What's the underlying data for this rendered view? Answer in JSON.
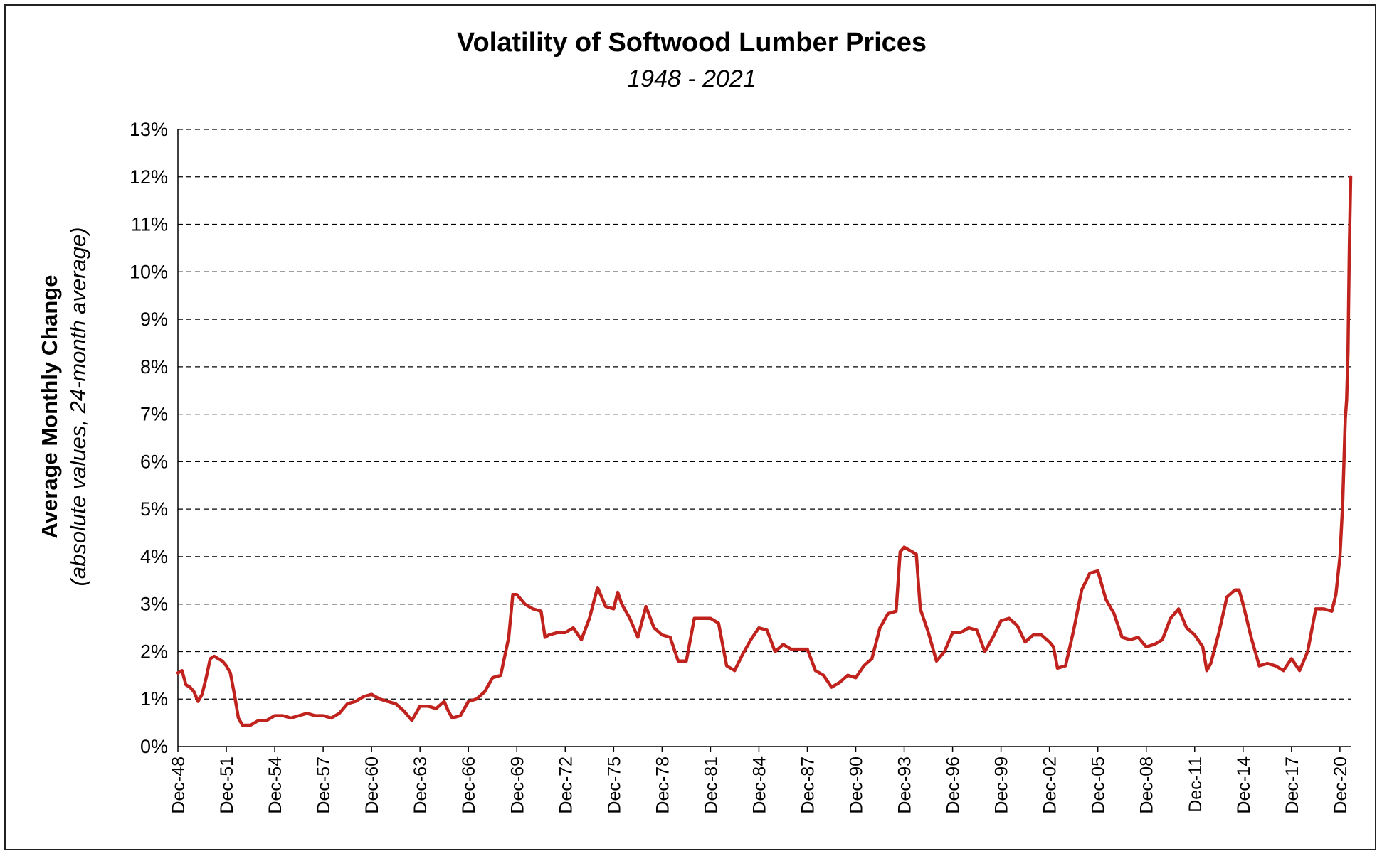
{
  "chart_data": {
    "type": "line",
    "title": "Volatility of Softwood Lumber Prices",
    "subtitle": "1948 - 2021",
    "ylabel": "Average Monthly Change",
    "ylabel_sub": "(absolute values, 24-month average)",
    "xlabel": "",
    "ylim": [
      0,
      13
    ],
    "yticks": [
      {
        "value": 0,
        "label": "0%"
      },
      {
        "value": 1,
        "label": "1%"
      },
      {
        "value": 2,
        "label": "2%"
      },
      {
        "value": 3,
        "label": "3%"
      },
      {
        "value": 4,
        "label": "4%"
      },
      {
        "value": 5,
        "label": "5%"
      },
      {
        "value": 6,
        "label": "6%"
      },
      {
        "value": 7,
        "label": "7%"
      },
      {
        "value": 8,
        "label": "8%"
      },
      {
        "value": 9,
        "label": "9%"
      },
      {
        "value": 10,
        "label": "10%"
      },
      {
        "value": 11,
        "label": "11%"
      },
      {
        "value": 12,
        "label": "12%"
      },
      {
        "value": 13,
        "label": "13%"
      }
    ],
    "xlim": [
      "Dec-48",
      "Aug-21"
    ],
    "xticks": [
      {
        "value": "Dec-48",
        "label": "Dec-48"
      },
      {
        "value": "Dec-51",
        "label": "Dec-51"
      },
      {
        "value": "Dec-54",
        "label": "Dec-54"
      },
      {
        "value": "Dec-57",
        "label": "Dec-57"
      },
      {
        "value": "Dec-60",
        "label": "Dec-60"
      },
      {
        "value": "Dec-63",
        "label": "Dec-63"
      },
      {
        "value": "Dec-66",
        "label": "Dec-66"
      },
      {
        "value": "Dec-69",
        "label": "Dec-69"
      },
      {
        "value": "Dec-72",
        "label": "Dec-72"
      },
      {
        "value": "Dec-75",
        "label": "Dec-75"
      },
      {
        "value": "Dec-78",
        "label": "Dec-78"
      },
      {
        "value": "Dec-81",
        "label": "Dec-81"
      },
      {
        "value": "Dec-84",
        "label": "Dec-84"
      },
      {
        "value": "Dec-87",
        "label": "Dec-87"
      },
      {
        "value": "Dec-90",
        "label": "Dec-90"
      },
      {
        "value": "Dec-93",
        "label": "Dec-93"
      },
      {
        "value": "Dec-96",
        "label": "Dec-96"
      },
      {
        "value": "Dec-99",
        "label": "Dec-99"
      },
      {
        "value": "Dec-02",
        "label": "Dec-02"
      },
      {
        "value": "Dec-05",
        "label": "Dec-05"
      },
      {
        "value": "Dec-08",
        "label": "Dec-08"
      },
      {
        "value": "Dec-11",
        "label": "Dec-11"
      },
      {
        "value": "Dec-14",
        "label": "Dec-14"
      },
      {
        "value": "Dec-17",
        "label": "Dec-17"
      },
      {
        "value": "Dec-20",
        "label": "Dec-20"
      }
    ],
    "grid": {
      "horizontal": true,
      "vertical": false,
      "style": "dashed"
    },
    "legend": "none",
    "series_color": "#C0231E",
    "series": [
      {
        "points": [
          [
            "Dec-48",
            1.55
          ],
          [
            "Mar-49",
            1.6
          ],
          [
            "Jun-49",
            1.3
          ],
          [
            "Sep-49",
            1.25
          ],
          [
            "Dec-49",
            1.15
          ],
          [
            "Mar-50",
            0.95
          ],
          [
            "Jun-50",
            1.1
          ],
          [
            "Sep-50",
            1.45
          ],
          [
            "Dec-50",
            1.85
          ],
          [
            "Mar-51",
            1.9
          ],
          [
            "Jun-51",
            1.85
          ],
          [
            "Sep-51",
            1.8
          ],
          [
            "Dec-51",
            1.7
          ],
          [
            "Mar-52",
            1.55
          ],
          [
            "Jun-52",
            1.1
          ],
          [
            "Sep-52",
            0.6
          ],
          [
            "Dec-52",
            0.45
          ],
          [
            "Mar-53",
            0.45
          ],
          [
            "Jun-53",
            0.45
          ],
          [
            "Dec-53",
            0.55
          ],
          [
            "Jun-54",
            0.55
          ],
          [
            "Dec-54",
            0.65
          ],
          [
            "Jun-55",
            0.65
          ],
          [
            "Dec-55",
            0.6
          ],
          [
            "Jun-56",
            0.65
          ],
          [
            "Dec-56",
            0.7
          ],
          [
            "Jun-57",
            0.65
          ],
          [
            "Dec-57",
            0.65
          ],
          [
            "Jun-58",
            0.6
          ],
          [
            "Dec-58",
            0.7
          ],
          [
            "Jun-59",
            0.9
          ],
          [
            "Dec-59",
            0.95
          ],
          [
            "Jun-60",
            1.05
          ],
          [
            "Dec-60",
            1.1
          ],
          [
            "Jun-61",
            1.0
          ],
          [
            "Dec-61",
            0.95
          ],
          [
            "Jun-62",
            0.9
          ],
          [
            "Dec-62",
            0.75
          ],
          [
            "Jun-63",
            0.55
          ],
          [
            "Dec-63",
            0.85
          ],
          [
            "Jun-64",
            0.85
          ],
          [
            "Dec-64",
            0.8
          ],
          [
            "Jun-65",
            0.95
          ],
          [
            "Sep-65",
            0.75
          ],
          [
            "Dec-65",
            0.6
          ],
          [
            "Jun-66",
            0.65
          ],
          [
            "Dec-66",
            0.95
          ],
          [
            "Jun-67",
            1.0
          ],
          [
            "Dec-67",
            1.15
          ],
          [
            "Jun-68",
            1.45
          ],
          [
            "Dec-68",
            1.5
          ],
          [
            "Jun-69",
            2.3
          ],
          [
            "Sep-69",
            3.2
          ],
          [
            "Dec-69",
            3.2
          ],
          [
            "Jun-70",
            3.0
          ],
          [
            "Dec-70",
            2.9
          ],
          [
            "Jun-71",
            2.85
          ],
          [
            "Sep-71",
            2.3
          ],
          [
            "Dec-71",
            2.35
          ],
          [
            "Jun-72",
            2.4
          ],
          [
            "Dec-72",
            2.4
          ],
          [
            "Jun-73",
            2.5
          ],
          [
            "Dec-73",
            2.25
          ],
          [
            "Jun-74",
            2.7
          ],
          [
            "Dec-74",
            3.35
          ],
          [
            "Jun-75",
            2.95
          ],
          [
            "Dec-75",
            2.9
          ],
          [
            "Mar-76",
            3.25
          ],
          [
            "Jun-76",
            3.0
          ],
          [
            "Dec-76",
            2.7
          ],
          [
            "Jun-77",
            2.3
          ],
          [
            "Dec-77",
            2.95
          ],
          [
            "Jun-78",
            2.5
          ],
          [
            "Dec-78",
            2.35
          ],
          [
            "Jun-79",
            2.3
          ],
          [
            "Dec-79",
            1.8
          ],
          [
            "Jun-80",
            1.8
          ],
          [
            "Dec-80",
            2.7
          ],
          [
            "Jun-81",
            2.7
          ],
          [
            "Dec-81",
            2.7
          ],
          [
            "Jun-82",
            2.6
          ],
          [
            "Dec-82",
            1.7
          ],
          [
            "Jun-83",
            1.6
          ],
          [
            "Dec-83",
            1.95
          ],
          [
            "Jun-84",
            2.25
          ],
          [
            "Dec-84",
            2.5
          ],
          [
            "Jun-85",
            2.45
          ],
          [
            "Dec-85",
            2.0
          ],
          [
            "Jun-86",
            2.15
          ],
          [
            "Dec-86",
            2.05
          ],
          [
            "Jun-87",
            2.05
          ],
          [
            "Dec-87",
            2.05
          ],
          [
            "Jun-88",
            1.6
          ],
          [
            "Dec-88",
            1.5
          ],
          [
            "Jun-89",
            1.25
          ],
          [
            "Dec-89",
            1.35
          ],
          [
            "Jun-90",
            1.5
          ],
          [
            "Dec-90",
            1.45
          ],
          [
            "Jun-91",
            1.7
          ],
          [
            "Dec-91",
            1.85
          ],
          [
            "Jun-92",
            2.5
          ],
          [
            "Dec-92",
            2.8
          ],
          [
            "Jun-93",
            2.85
          ],
          [
            "Sep-93",
            4.1
          ],
          [
            "Dec-93",
            4.2
          ],
          [
            "Mar-94",
            4.15
          ],
          [
            "Jun-94",
            4.1
          ],
          [
            "Sep-94",
            4.05
          ],
          [
            "Dec-94",
            2.9
          ],
          [
            "Jun-95",
            2.4
          ],
          [
            "Dec-95",
            1.8
          ],
          [
            "Jun-96",
            2.0
          ],
          [
            "Dec-96",
            2.4
          ],
          [
            "Jun-97",
            2.4
          ],
          [
            "Dec-97",
            2.5
          ],
          [
            "Jun-98",
            2.45
          ],
          [
            "Dec-98",
            2.0
          ],
          [
            "Jun-99",
            2.3
          ],
          [
            "Dec-99",
            2.65
          ],
          [
            "Jun-00",
            2.7
          ],
          [
            "Dec-00",
            2.55
          ],
          [
            "Jun-01",
            2.2
          ],
          [
            "Dec-01",
            2.35
          ],
          [
            "Jun-02",
            2.35
          ],
          [
            "Dec-02",
            2.2
          ],
          [
            "Mar-03",
            2.1
          ],
          [
            "Jun-03",
            1.65
          ],
          [
            "Dec-03",
            1.7
          ],
          [
            "Jun-04",
            2.45
          ],
          [
            "Dec-04",
            3.3
          ],
          [
            "Jun-05",
            3.65
          ],
          [
            "Dec-05",
            3.7
          ],
          [
            "Jun-06",
            3.1
          ],
          [
            "Dec-06",
            2.8
          ],
          [
            "Jun-07",
            2.3
          ],
          [
            "Dec-07",
            2.25
          ],
          [
            "Jun-08",
            2.3
          ],
          [
            "Dec-08",
            2.1
          ],
          [
            "Jun-09",
            2.15
          ],
          [
            "Dec-09",
            2.25
          ],
          [
            "Jun-10",
            2.7
          ],
          [
            "Dec-10",
            2.9
          ],
          [
            "Jun-11",
            2.5
          ],
          [
            "Dec-11",
            2.35
          ],
          [
            "Jun-12",
            2.1
          ],
          [
            "Sep-12",
            1.6
          ],
          [
            "Dec-12",
            1.75
          ],
          [
            "Jun-13",
            2.4
          ],
          [
            "Dec-13",
            3.15
          ],
          [
            "Jun-14",
            3.3
          ],
          [
            "Sep-14",
            3.3
          ],
          [
            "Dec-14",
            3.0
          ],
          [
            "Jun-15",
            2.3
          ],
          [
            "Dec-15",
            1.7
          ],
          [
            "Jun-16",
            1.75
          ],
          [
            "Dec-16",
            1.7
          ],
          [
            "Jun-17",
            1.6
          ],
          [
            "Dec-17",
            1.85
          ],
          [
            "Jun-18",
            1.6
          ],
          [
            "Dec-18",
            2.0
          ],
          [
            "Jun-19",
            2.9
          ],
          [
            "Dec-19",
            2.9
          ],
          [
            "Jun-20",
            2.85
          ],
          [
            "Sep-20",
            3.2
          ],
          [
            "Dec-20",
            4.0
          ],
          [
            "Feb-21",
            5.1
          ],
          [
            "Apr-21",
            6.9
          ],
          [
            "May-21",
            7.3
          ],
          [
            "Jun-21",
            8.3
          ],
          [
            "Jul-21",
            10.5
          ],
          [
            "Aug-21",
            12.0
          ]
        ]
      }
    ]
  }
}
